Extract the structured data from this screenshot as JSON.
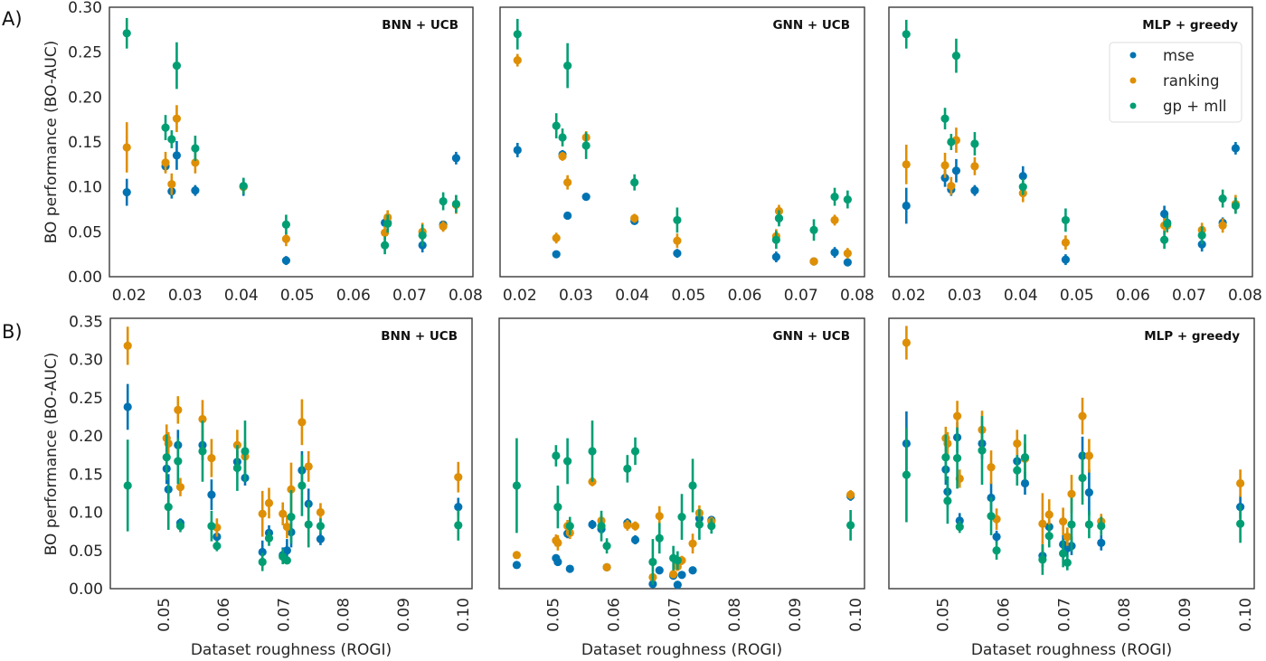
{
  "figure": {
    "panel_labels": [
      "A)",
      "B)"
    ],
    "ylabel": "BO performance (BO-AUC)",
    "xlabel": "Dataset roughness (ROGI)",
    "legend": [
      {
        "label": "mse",
        "color": "#0173b2"
      },
      {
        "label": "ranking",
        "color": "#de8f05"
      },
      {
        "label": "gp + mll",
        "color": "#029e73"
      }
    ]
  },
  "chart_data": [
    {
      "type": "scatter",
      "row": "A",
      "title": "BNN + UCB",
      "xlim": [
        0.0165,
        0.0813
      ],
      "ylim": [
        0,
        0.3
      ],
      "xticks": [
        "0.02",
        "0.03",
        "0.04",
        "0.05",
        "0.06",
        "0.07",
        "0.08"
      ],
      "yticks": [
        "0.00",
        "0.05",
        "0.10",
        "0.15",
        "0.20",
        "0.25",
        "0.30"
      ],
      "x": [
        0.0196,
        0.0265,
        0.0276,
        0.0285,
        0.0318,
        0.0404,
        0.048,
        0.0656,
        0.0661,
        0.0723,
        0.076,
        0.0783
      ],
      "series": [
        {
          "name": "mse",
          "color": "#0173b2",
          "values": [
            0.094,
            0.123,
            0.095,
            0.135,
            0.096,
            0.1,
            0.018,
            0.06,
            0.06,
            0.035,
            0.058,
            0.132
          ],
          "errors": [
            0.015,
            0.006,
            0.008,
            0.016,
            0.006,
            0.01,
            0.005,
            0.005,
            0.005,
            0.008,
            0.004,
            0.007
          ]
        },
        {
          "name": "ranking",
          "color": "#de8f05",
          "values": [
            0.144,
            0.127,
            0.103,
            0.176,
            0.127,
            0.1,
            0.042,
            0.049,
            0.066,
            0.05,
            0.056,
            0.08
          ],
          "errors": [
            0.028,
            0.012,
            0.012,
            0.015,
            0.012,
            0.008,
            0.008,
            0.008,
            0.008,
            0.01,
            0.006,
            0.01
          ]
        },
        {
          "name": "gp + mll",
          "color": "#029e73",
          "values": [
            0.271,
            0.166,
            0.153,
            0.235,
            0.143,
            0.101,
            0.058,
            0.035,
            0.059,
            0.046,
            0.084,
            0.081
          ],
          "errors": [
            0.017,
            0.014,
            0.01,
            0.026,
            0.014,
            0.009,
            0.011,
            0.01,
            0.01,
            0.012,
            0.01,
            0.01
          ]
        }
      ]
    },
    {
      "type": "scatter",
      "row": "A",
      "title": "GNN + UCB",
      "xlim": [
        0.0165,
        0.0813
      ],
      "ylim": [
        0,
        0.3
      ],
      "xticks": [
        "0.02",
        "0.03",
        "0.04",
        "0.05",
        "0.06",
        "0.07",
        "0.08"
      ],
      "yticks": [],
      "x": [
        0.0196,
        0.0265,
        0.0276,
        0.0285,
        0.0318,
        0.0404,
        0.048,
        0.0656,
        0.0661,
        0.0723,
        0.076,
        0.0783
      ],
      "series": [
        {
          "name": "mse",
          "color": "#0173b2",
          "values": [
            0.141,
            0.025,
            0.136,
            0.068,
            0.089,
            0.062,
            0.026,
            0.022,
            0.065,
            0.017,
            0.027,
            0.016
          ],
          "errors": [
            0.008,
            0.003,
            0.005,
            0.004,
            0.004,
            0.004,
            0.005,
            0.006,
            0.006,
            0.003,
            0.006,
            0.004
          ]
        },
        {
          "name": "ranking",
          "color": "#de8f05",
          "values": [
            0.241,
            0.043,
            0.134,
            0.105,
            0.155,
            0.065,
            0.04,
            0.045,
            0.073,
            0.017,
            0.063,
            0.026
          ],
          "errors": [
            0.007,
            0.006,
            0.005,
            0.008,
            0.007,
            0.005,
            0.008,
            0.008,
            0.007,
            0.003,
            0.006,
            0.006
          ]
        },
        {
          "name": "gp + mll",
          "color": "#029e73",
          "values": [
            0.27,
            0.168,
            0.155,
            0.235,
            0.146,
            0.105,
            0.063,
            0.041,
            0.065,
            0.052,
            0.089,
            0.086
          ],
          "errors": [
            0.017,
            0.014,
            0.01,
            0.025,
            0.015,
            0.009,
            0.014,
            0.01,
            0.009,
            0.012,
            0.01,
            0.01
          ]
        }
      ]
    },
    {
      "type": "scatter",
      "row": "A",
      "title": "MLP + greedy",
      "xlim": [
        0.0165,
        0.0813
      ],
      "ylim": [
        0,
        0.3
      ],
      "xticks": [
        "0.02",
        "0.03",
        "0.04",
        "0.05",
        "0.06",
        "0.07",
        "0.08"
      ],
      "yticks": [],
      "legend": "top-right",
      "x": [
        0.0196,
        0.0265,
        0.0276,
        0.0285,
        0.0318,
        0.0404,
        0.048,
        0.0656,
        0.0661,
        0.0723,
        0.076,
        0.0783
      ],
      "series": [
        {
          "name": "mse",
          "color": "#0173b2",
          "values": [
            0.079,
            0.11,
            0.097,
            0.118,
            0.096,
            0.112,
            0.019,
            0.07,
            0.06,
            0.036,
            0.06,
            0.143
          ],
          "errors": [
            0.02,
            0.01,
            0.007,
            0.013,
            0.006,
            0.011,
            0.006,
            0.009,
            0.006,
            0.008,
            0.006,
            0.007
          ]
        },
        {
          "name": "ranking",
          "color": "#de8f05",
          "values": [
            0.125,
            0.124,
            0.101,
            0.152,
            0.123,
            0.093,
            0.038,
            0.057,
            0.057,
            0.052,
            0.057,
            0.081
          ],
          "errors": [
            0.022,
            0.014,
            0.01,
            0.014,
            0.01,
            0.01,
            0.008,
            0.008,
            0.008,
            0.008,
            0.008,
            0.01
          ]
        },
        {
          "name": "gp + mll",
          "color": "#029e73",
          "values": [
            0.27,
            0.176,
            0.15,
            0.246,
            0.148,
            0.1,
            0.063,
            0.041,
            0.059,
            0.046,
            0.087,
            0.079
          ],
          "errors": [
            0.016,
            0.012,
            0.009,
            0.019,
            0.013,
            0.009,
            0.013,
            0.01,
            0.009,
            0.01,
            0.01,
            0.009
          ]
        }
      ]
    },
    {
      "type": "scatter",
      "row": "B",
      "title": "BNN + UCB",
      "xlim": [
        0.0411,
        0.1015
      ],
      "ylim": [
        0,
        0.354
      ],
      "xticks": [
        "0.05",
        "0.06",
        "0.07",
        "0.08",
        "0.09",
        "0.10"
      ],
      "yticks": [
        "0.00",
        "0.05",
        "0.10",
        "0.15",
        "0.20",
        "0.25",
        "0.30",
        "0.35"
      ],
      "x": [
        0.044,
        0.0505,
        0.0508,
        0.0524,
        0.0528,
        0.0565,
        0.058,
        0.0589,
        0.0623,
        0.0636,
        0.0665,
        0.0676,
        0.0699,
        0.0706,
        0.0713,
        0.0731,
        0.0742,
        0.0762,
        0.0992
      ],
      "series": [
        {
          "name": "mse",
          "color": "#0173b2",
          "values": [
            0.238,
            0.157,
            0.13,
            0.188,
            0.086,
            0.188,
            0.123,
            0.068,
            0.166,
            0.145,
            0.048,
            0.073,
            0.044,
            0.05,
            0.074,
            0.155,
            0.111,
            0.065,
            0.107
          ],
          "errors": [
            0.03,
            0.02,
            0.02,
            0.02,
            0.006,
            0.02,
            0.02,
            0.006,
            0.015,
            0.01,
            0.015,
            0.01,
            0.01,
            0.015,
            0.02,
            0.025,
            0.02,
            0.008,
            0.012
          ]
        },
        {
          "name": "ranking",
          "color": "#de8f05",
          "values": [
            0.318,
            0.197,
            0.19,
            0.234,
            0.133,
            0.222,
            0.171,
            0.08,
            0.188,
            0.173,
            0.098,
            0.112,
            0.098,
            0.081,
            0.13,
            0.218,
            0.16,
            0.1,
            0.146
          ],
          "errors": [
            0.025,
            0.018,
            0.015,
            0.018,
            0.012,
            0.025,
            0.025,
            0.012,
            0.02,
            0.02,
            0.03,
            0.02,
            0.015,
            0.015,
            0.035,
            0.03,
            0.02,
            0.012,
            0.02
          ]
        },
        {
          "name": "gp + mll",
          "color": "#029e73",
          "values": [
            0.135,
            0.172,
            0.107,
            0.167,
            0.082,
            0.18,
            0.082,
            0.056,
            0.158,
            0.18,
            0.035,
            0.066,
            0.042,
            0.037,
            0.094,
            0.135,
            0.084,
            0.082,
            0.083
          ],
          "errors": [
            0.06,
            0.03,
            0.03,
            0.03,
            0.008,
            0.04,
            0.02,
            0.007,
            0.03,
            0.04,
            0.012,
            0.01,
            0.01,
            0.005,
            0.035,
            0.04,
            0.03,
            0.01,
            0.02
          ]
        }
      ]
    },
    {
      "type": "scatter",
      "row": "B",
      "title": "GNN + UCB",
      "xlim": [
        0.0411,
        0.1015
      ],
      "ylim": [
        0,
        0.354
      ],
      "xticks": [
        "0.05",
        "0.06",
        "0.07",
        "0.08",
        "0.09",
        "0.10"
      ],
      "yticks": [],
      "x": [
        0.044,
        0.0505,
        0.0508,
        0.0524,
        0.0528,
        0.0565,
        0.058,
        0.0589,
        0.0623,
        0.0636,
        0.0665,
        0.0676,
        0.0699,
        0.0706,
        0.0713,
        0.0731,
        0.0742,
        0.0762,
        0.0992
      ],
      "series": [
        {
          "name": "mse",
          "color": "#0173b2",
          "values": [
            0.031,
            0.04,
            0.035,
            0.072,
            0.026,
            0.084,
            0.078,
            0.028,
            0.086,
            0.064,
            0.006,
            0.024,
            0.017,
            0.005,
            0.018,
            0.024,
            0.092,
            0.09,
            0.121
          ],
          "errors": [
            0.004,
            0.005,
            0.005,
            0.006,
            0.003,
            0.006,
            0.006,
            0.004,
            0.006,
            0.006,
            0.003,
            0.003,
            0.004,
            0.003,
            0.004,
            0.003,
            0.006,
            0.005,
            0.006
          ]
        },
        {
          "name": "ranking",
          "color": "#de8f05",
          "values": [
            0.044,
            0.063,
            0.06,
            0.082,
            0.073,
            0.14,
            0.089,
            0.028,
            0.083,
            0.082,
            0.015,
            0.095,
            0.019,
            0.029,
            0.037,
            0.059,
            0.099,
            0.088,
            0.123
          ],
          "errors": [
            0.005,
            0.008,
            0.01,
            0.008,
            0.008,
            0.006,
            0.008,
            0.004,
            0.007,
            0.006,
            0.005,
            0.013,
            0.005,
            0.006,
            0.006,
            0.013,
            0.01,
            0.006,
            0.006
          ]
        },
        {
          "name": "gp + mll",
          "color": "#029e73",
          "values": [
            0.135,
            0.174,
            0.107,
            0.167,
            0.082,
            0.18,
            0.082,
            0.056,
            0.157,
            0.18,
            0.035,
            0.066,
            0.04,
            0.037,
            0.094,
            0.135,
            0.084,
            0.082,
            0.083
          ],
          "errors": [
            0.062,
            0.014,
            0.028,
            0.03,
            0.012,
            0.04,
            0.02,
            0.01,
            0.018,
            0.018,
            0.03,
            0.02,
            0.016,
            0.012,
            0.03,
            0.035,
            0.02,
            0.01,
            0.02
          ]
        }
      ]
    },
    {
      "type": "scatter",
      "row": "B",
      "title": "MLP + greedy",
      "xlim": [
        0.0411,
        0.1015
      ],
      "ylim": [
        0,
        0.354
      ],
      "xticks": [
        "0.05",
        "0.06",
        "0.07",
        "0.08",
        "0.09",
        "0.10"
      ],
      "yticks": [],
      "x": [
        0.044,
        0.0505,
        0.0508,
        0.0524,
        0.0528,
        0.0565,
        0.058,
        0.0589,
        0.0623,
        0.0636,
        0.0665,
        0.0676,
        0.0699,
        0.0706,
        0.0713,
        0.0731,
        0.0742,
        0.0762,
        0.0992
      ],
      "series": [
        {
          "name": "mse",
          "color": "#0173b2",
          "values": [
            0.19,
            0.156,
            0.127,
            0.198,
            0.089,
            0.19,
            0.119,
            0.068,
            0.167,
            0.138,
            0.043,
            0.081,
            0.058,
            0.053,
            0.056,
            0.174,
            0.126,
            0.06,
            0.107
          ],
          "errors": [
            0.042,
            0.02,
            0.02,
            0.02,
            0.01,
            0.02,
            0.02,
            0.008,
            0.015,
            0.015,
            0.015,
            0.01,
            0.012,
            0.012,
            0.012,
            0.025,
            0.03,
            0.01,
            0.015
          ]
        },
        {
          "name": "ranking",
          "color": "#de8f05",
          "values": [
            0.322,
            0.197,
            0.19,
            0.226,
            0.144,
            0.208,
            0.159,
            0.091,
            0.19,
            0.17,
            0.085,
            0.097,
            0.088,
            0.068,
            0.124,
            0.226,
            0.174,
            0.088,
            0.138
          ],
          "errors": [
            0.022,
            0.015,
            0.015,
            0.02,
            0.012,
            0.025,
            0.022,
            0.014,
            0.018,
            0.02,
            0.04,
            0.02,
            0.018,
            0.012,
            0.025,
            0.024,
            0.022,
            0.01,
            0.018
          ]
        },
        {
          "name": "gp + mll",
          "color": "#029e73",
          "values": [
            0.149,
            0.172,
            0.115,
            0.171,
            0.081,
            0.181,
            0.095,
            0.05,
            0.155,
            0.172,
            0.038,
            0.069,
            0.046,
            0.034,
            0.084,
            0.145,
            0.084,
            0.082,
            0.085
          ],
          "errors": [
            0.062,
            0.03,
            0.03,
            0.04,
            0.008,
            0.045,
            0.025,
            0.012,
            0.02,
            0.03,
            0.02,
            0.015,
            0.018,
            0.01,
            0.035,
            0.035,
            0.018,
            0.012,
            0.025
          ]
        }
      ]
    }
  ]
}
